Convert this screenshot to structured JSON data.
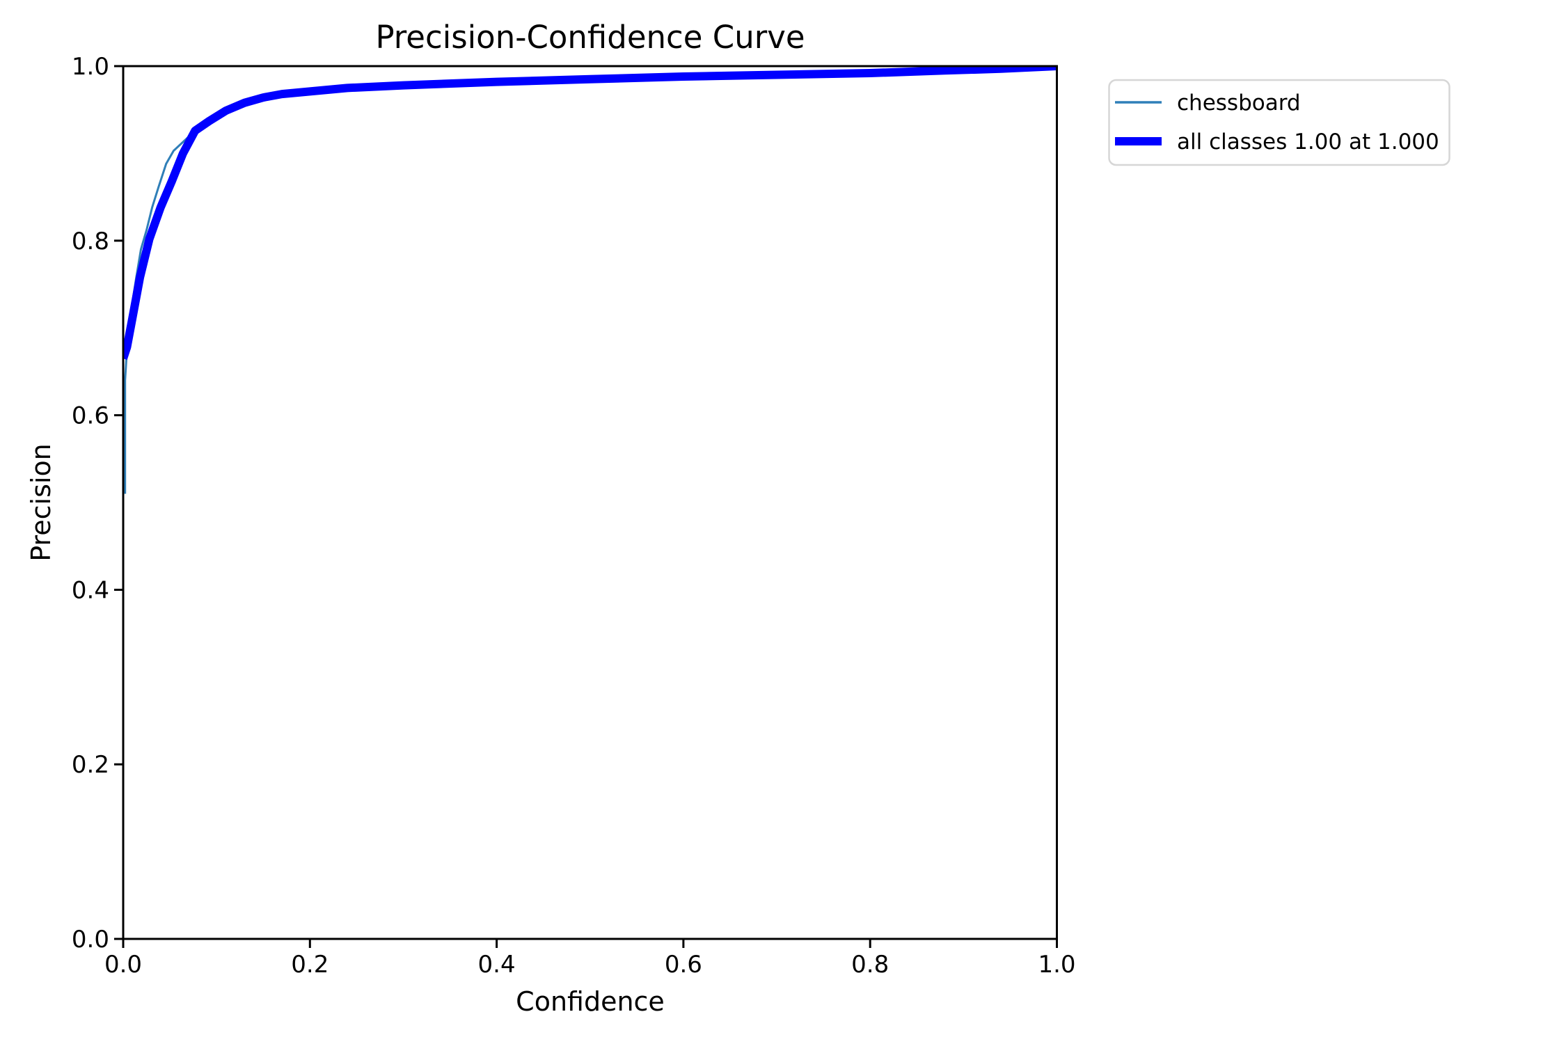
{
  "chart_data": {
    "type": "line",
    "title": "Precision-Confidence Curve",
    "xlabel": "Confidence",
    "ylabel": "Precision",
    "xlim": [
      0.0,
      1.0
    ],
    "ylim": [
      0.0,
      1.0
    ],
    "grid": false,
    "x_ticks": [
      "0.0",
      "0.2",
      "0.4",
      "0.6",
      "0.8",
      "1.0"
    ],
    "y_ticks": [
      "0.0",
      "0.2",
      "0.4",
      "0.6",
      "0.8",
      "1.0"
    ],
    "legend_position": "outside-upper-right",
    "series": [
      {
        "name": "chessboard",
        "color": "#2f7fb8",
        "line_width": 3,
        "x": [
          0.002,
          0.002,
          0.004,
          0.007,
          0.01,
          0.014,
          0.019,
          0.025,
          0.031,
          0.038,
          0.046,
          0.054,
          0.063,
          0.073,
          0.085,
          0.1,
          0.12,
          0.145,
          0.17,
          0.2,
          0.24,
          0.3,
          0.4,
          0.5,
          0.6,
          0.7,
          0.8,
          0.88,
          0.94,
          1.0
        ],
        "y": [
          0.51,
          0.64,
          0.675,
          0.703,
          0.73,
          0.758,
          0.79,
          0.812,
          0.838,
          0.862,
          0.888,
          0.903,
          0.912,
          0.922,
          0.932,
          0.941,
          0.951,
          0.96,
          0.97,
          0.973,
          0.976,
          0.98,
          0.984,
          0.986,
          0.989,
          0.991,
          0.993,
          0.995,
          0.997,
          1.0
        ]
      },
      {
        "name": "all classes 1.00 at 1.000",
        "color": "#0000ff",
        "line_width": 12,
        "x": [
          0.0,
          0.004,
          0.01,
          0.018,
          0.028,
          0.04,
          0.052,
          0.064,
          0.077,
          0.092,
          0.11,
          0.13,
          0.15,
          0.17,
          0.2,
          0.24,
          0.3,
          0.4,
          0.5,
          0.6,
          0.7,
          0.8,
          0.88,
          0.94,
          1.0
        ],
        "y": [
          0.665,
          0.678,
          0.712,
          0.758,
          0.802,
          0.838,
          0.868,
          0.9,
          0.926,
          0.937,
          0.949,
          0.958,
          0.964,
          0.968,
          0.971,
          0.975,
          0.978,
          0.982,
          0.985,
          0.988,
          0.99,
          0.992,
          0.995,
          0.997,
          1.0
        ]
      }
    ]
  },
  "style": {
    "background": "#ffffff",
    "axis_color": "#000000",
    "text_color": "#000000",
    "legend_border_color": "#d6d6d6",
    "legend_fill": "#ffffff"
  }
}
